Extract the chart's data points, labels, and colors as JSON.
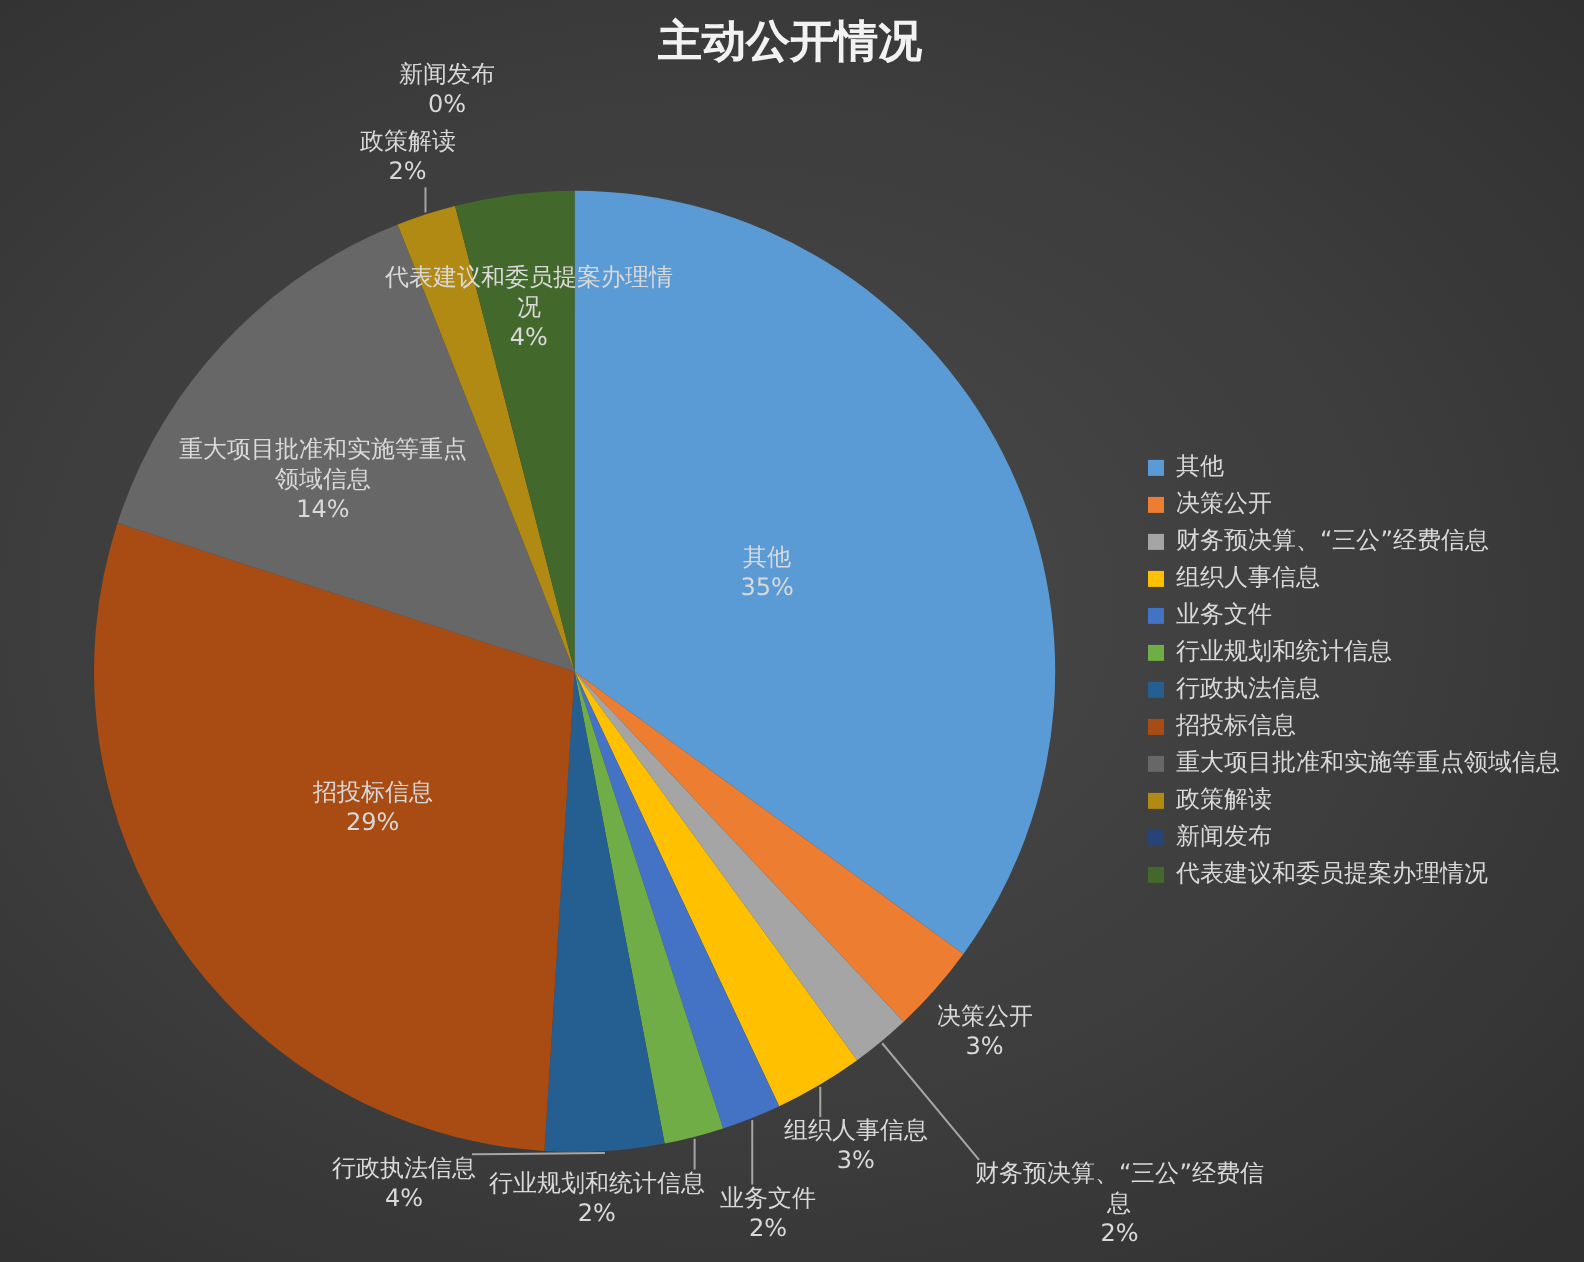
{
  "chart_data": {
    "type": "pie",
    "title": "主动公开情况",
    "categories": [
      "其他",
      "决策公开",
      "财务预决算、“三公”经费信息",
      "组织人事信息",
      "业务文件",
      "行业规划和统计信息",
      "行政执法信息",
      "招投标信息",
      "重大项目批准和实施等重点领域信息",
      "政策解读",
      "新闻发布",
      "代表建议和委员提案办理情况"
    ],
    "values": [
      35,
      3,
      2,
      3,
      2,
      2,
      4,
      29,
      14,
      2,
      0,
      4
    ],
    "colors": [
      "#5b9bd5",
      "#ed7d31",
      "#a5a5a5",
      "#ffc000",
      "#4472c4",
      "#70ad47",
      "#255e91",
      "#a84c14",
      "#676767",
      "#b08a12",
      "#264478",
      "#43682b"
    ],
    "value_labels": [
      "35%",
      "3%",
      "2%",
      "3%",
      "2%",
      "2%",
      "4%",
      "29%",
      "14%",
      "2%",
      "0%",
      "4%"
    ],
    "legend": "right"
  }
}
